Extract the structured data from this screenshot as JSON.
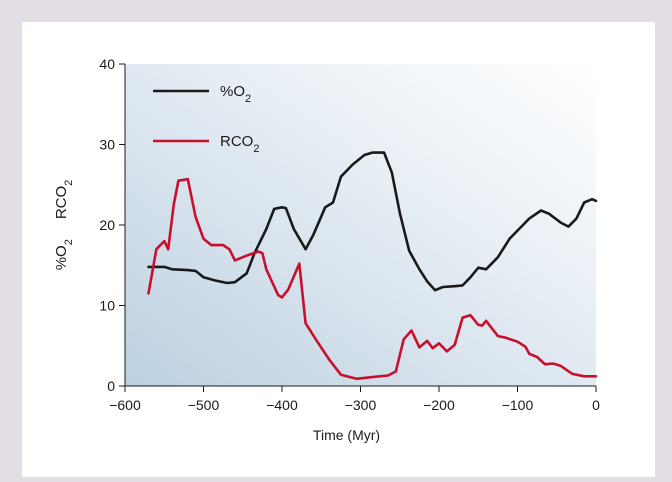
{
  "chart_data": {
    "type": "line",
    "xlabel": "Time (Myr)",
    "ylabel": {
      "series1": "%O",
      "series1_sub": "2",
      "series2": "RCO",
      "series2_sub": "2"
    },
    "xlim": [
      -600,
      0
    ],
    "ylim": [
      0,
      40
    ],
    "x_ticks": [
      -600,
      -500,
      -400,
      -300,
      -200,
      -100,
      0
    ],
    "x_tick_labels": [
      "−600",
      "−500",
      "−400",
      "−300",
      "−200",
      "−100",
      "0"
    ],
    "y_ticks": [
      0,
      10,
      20,
      30,
      40
    ],
    "y_tick_labels": [
      "0",
      "10",
      "20",
      "30",
      "40"
    ],
    "grid": false,
    "legend_position": "top-left",
    "series": [
      {
        "name": "%O2",
        "label_main": "%O",
        "label_sub": "2",
        "color": "#1a1a1a",
        "points": [
          [
            -570,
            14.8
          ],
          [
            -550,
            14.8
          ],
          [
            -540,
            14.5
          ],
          [
            -520,
            14.4
          ],
          [
            -510,
            14.3
          ],
          [
            -500,
            13.5
          ],
          [
            -485,
            13.1
          ],
          [
            -470,
            12.8
          ],
          [
            -460,
            12.9
          ],
          [
            -445,
            14.0
          ],
          [
            -435,
            16.5
          ],
          [
            -420,
            19.5
          ],
          [
            -410,
            22.0
          ],
          [
            -400,
            22.2
          ],
          [
            -395,
            22.1
          ],
          [
            -385,
            19.5
          ],
          [
            -370,
            17.0
          ],
          [
            -360,
            18.8
          ],
          [
            -345,
            22.2
          ],
          [
            -335,
            22.8
          ],
          [
            -325,
            26.0
          ],
          [
            -310,
            27.5
          ],
          [
            -295,
            28.7
          ],
          [
            -285,
            29.0
          ],
          [
            -270,
            29.0
          ],
          [
            -260,
            26.5
          ],
          [
            -250,
            21.5
          ],
          [
            -238,
            16.8
          ],
          [
            -225,
            14.5
          ],
          [
            -215,
            13.0
          ],
          [
            -205,
            11.9
          ],
          [
            -195,
            12.3
          ],
          [
            -180,
            12.4
          ],
          [
            -170,
            12.5
          ],
          [
            -160,
            13.5
          ],
          [
            -150,
            14.7
          ],
          [
            -140,
            14.5
          ],
          [
            -125,
            16.0
          ],
          [
            -110,
            18.3
          ],
          [
            -95,
            19.8
          ],
          [
            -85,
            20.8
          ],
          [
            -70,
            21.8
          ],
          [
            -60,
            21.4
          ],
          [
            -45,
            20.3
          ],
          [
            -35,
            19.8
          ],
          [
            -25,
            20.8
          ],
          [
            -15,
            22.8
          ],
          [
            -5,
            23.2
          ],
          [
            0,
            23.0
          ]
        ]
      },
      {
        "name": "RCO2",
        "label_main": "RCO",
        "label_sub": "2",
        "color": "#c8102e",
        "points": [
          [
            -570,
            11.5
          ],
          [
            -560,
            17.0
          ],
          [
            -550,
            18.0
          ],
          [
            -545,
            17.0
          ],
          [
            -538,
            22.5
          ],
          [
            -532,
            25.5
          ],
          [
            -520,
            25.7
          ],
          [
            -510,
            21.0
          ],
          [
            -500,
            18.3
          ],
          [
            -490,
            17.5
          ],
          [
            -475,
            17.5
          ],
          [
            -467,
            17.0
          ],
          [
            -460,
            15.6
          ],
          [
            -445,
            16.2
          ],
          [
            -430,
            16.7
          ],
          [
            -425,
            16.5
          ],
          [
            -420,
            14.5
          ],
          [
            -405,
            11.3
          ],
          [
            -400,
            11.0
          ],
          [
            -392,
            12.0
          ],
          [
            -378,
            15.2
          ],
          [
            -370,
            7.8
          ],
          [
            -355,
            5.5
          ],
          [
            -340,
            3.3
          ],
          [
            -325,
            1.4
          ],
          [
            -305,
            0.9
          ],
          [
            -285,
            1.1
          ],
          [
            -265,
            1.3
          ],
          [
            -255,
            1.8
          ],
          [
            -245,
            5.8
          ],
          [
            -235,
            6.9
          ],
          [
            -225,
            4.8
          ],
          [
            -215,
            5.6
          ],
          [
            -208,
            4.7
          ],
          [
            -200,
            5.3
          ],
          [
            -190,
            4.3
          ],
          [
            -180,
            5.1
          ],
          [
            -170,
            8.5
          ],
          [
            -160,
            8.8
          ],
          [
            -150,
            7.6
          ],
          [
            -145,
            7.5
          ],
          [
            -140,
            8.1
          ],
          [
            -125,
            6.2
          ],
          [
            -115,
            6.0
          ],
          [
            -100,
            5.5
          ],
          [
            -90,
            4.9
          ],
          [
            -85,
            4.0
          ],
          [
            -75,
            3.6
          ],
          [
            -65,
            2.7
          ],
          [
            -55,
            2.8
          ],
          [
            -45,
            2.5
          ],
          [
            -30,
            1.5
          ],
          [
            -15,
            1.2
          ],
          [
            0,
            1.2
          ]
        ]
      }
    ]
  }
}
